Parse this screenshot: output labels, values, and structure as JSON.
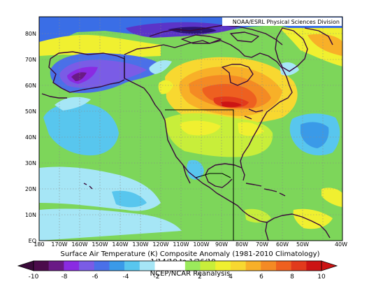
{
  "credit": "NOAA/ESRL Physical Sciences Division",
  "title": "Surface Air Temperature (K) Composite Anomaly (1981-2010 Climatology)",
  "date_range": "1/14/19 to 1/26/19",
  "source": "NCEP/NCAR Reanalysis",
  "lat_labels": [
    "EQ",
    "10N",
    "20N",
    "30N",
    "40N",
    "50N",
    "60N",
    "70N",
    "80N"
  ],
  "lon_labels": [
    "180",
    "170W",
    "160W",
    "150W",
    "140W",
    "130W",
    "120W",
    "110W",
    "100W",
    "90W",
    "80W",
    "70W",
    "60W",
    "50W",
    "40W"
  ],
  "colorbar": {
    "labels": [
      "-10",
      "-8",
      "-6",
      "-4",
      "-2",
      "2",
      "4",
      "6",
      "8",
      "10"
    ],
    "colors": [
      "#4b0b4b",
      "#6a1a86",
      "#8a2be2",
      "#7a5ce6",
      "#4a70e8",
      "#3a9ae8",
      "#58c6ee",
      "#a6e6f6",
      "#ffffff",
      "#ffffff",
      "#9bea5c",
      "#c8ee3a",
      "#f0f030",
      "#f8d830",
      "#f8b028",
      "#f48a24",
      "#ee6020",
      "#e23a1c",
      "#cc1414"
    ]
  }
}
